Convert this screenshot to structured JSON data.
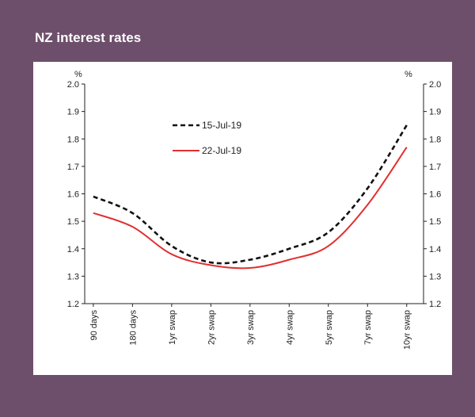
{
  "title": "NZ interest rates",
  "chart_data": {
    "type": "line",
    "categories": [
      "90 days",
      "180 days",
      "1yr swap",
      "2yr swap",
      "3yr swap",
      "4yr swap",
      "5yr swap",
      "7yr swap",
      "10yr swap"
    ],
    "series": [
      {
        "name": "15-Jul-19",
        "values": [
          1.59,
          1.53,
          1.41,
          1.35,
          1.36,
          1.4,
          1.46,
          1.62,
          1.85
        ],
        "color": "#111111",
        "dash": true
      },
      {
        "name": "22-Jul-19",
        "values": [
          1.53,
          1.48,
          1.38,
          1.34,
          1.33,
          1.36,
          1.41,
          1.56,
          1.77
        ],
        "color": "#e03030",
        "dash": false
      }
    ],
    "ylim": [
      1.2,
      2.0
    ],
    "yticks": [
      "1.2",
      "1.3",
      "1.4",
      "1.5",
      "1.6",
      "1.7",
      "1.8",
      "1.9",
      "2.0"
    ],
    "ylabel_left": "%",
    "ylabel_right": "%",
    "legend_position": "top-center",
    "grid": false
  },
  "colors": {
    "background": "#6e4f6b",
    "plot_background": "#ffffff"
  }
}
